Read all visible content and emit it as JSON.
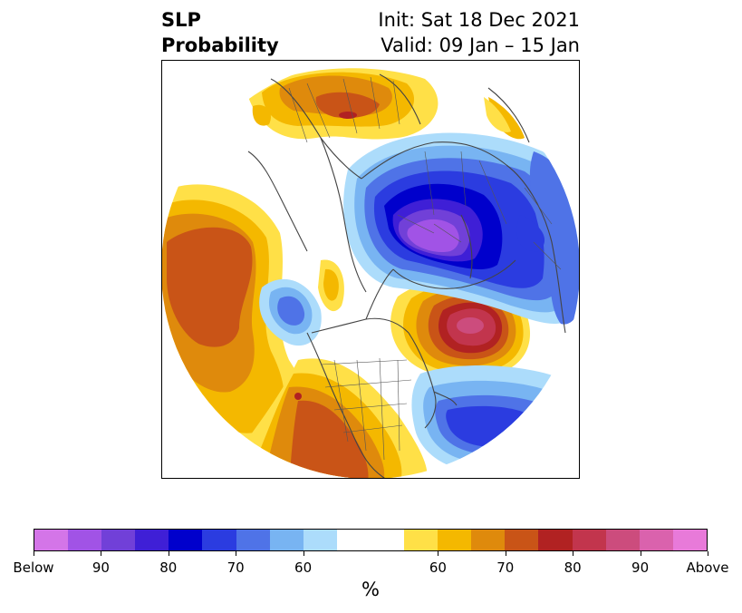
{
  "title": {
    "line1": "SLP",
    "line2": "Probability",
    "init": "Init: Sat 18 Dec 2021",
    "valid": "Valid: 09 Jan – 15 Jan"
  },
  "map": {
    "projection": "north polar stereographic",
    "features": [
      {
        "name": "Strong low-pressure probability center over Arctic / northern Eurasia",
        "category": "below",
        "level": "90+"
      },
      {
        "name": "High-pressure probability center over Greenland / North Atlantic",
        "category": "above",
        "level": "80-90"
      },
      {
        "name": "Above-normal region over North Pacific / Alaska",
        "category": "above",
        "level": "70"
      },
      {
        "name": "Above-normal region over western and central United States",
        "category": "above",
        "level": "70-80"
      },
      {
        "name": "Below-normal region over eastern North Atlantic",
        "category": "below",
        "level": "70-80"
      },
      {
        "name": "Above-normal region over northern Europe / Scandinavia",
        "category": "above",
        "level": "70-80"
      },
      {
        "name": "Below-normal region over Siberia / East Asia",
        "category": "below",
        "level": "70"
      }
    ]
  },
  "colorbar": {
    "unit": "%",
    "colors": [
      "#d475e8",
      "#a153e6",
      "#7140d8",
      "#3f1fd6",
      "#0000cc",
      "#2b3ce0",
      "#4f73e7",
      "#78b4f2",
      "#acdcfb",
      "#ffffff",
      "#ffffff",
      "#ffe047",
      "#f4b800",
      "#df8a0c",
      "#c95417",
      "#b12222",
      "#c2354d",
      "#cc4c7d",
      "#da62ad",
      "#e87ad9"
    ],
    "labels": [
      "Below",
      "90",
      "80",
      "70",
      "60",
      "60",
      "70",
      "80",
      "90",
      "Above"
    ]
  }
}
